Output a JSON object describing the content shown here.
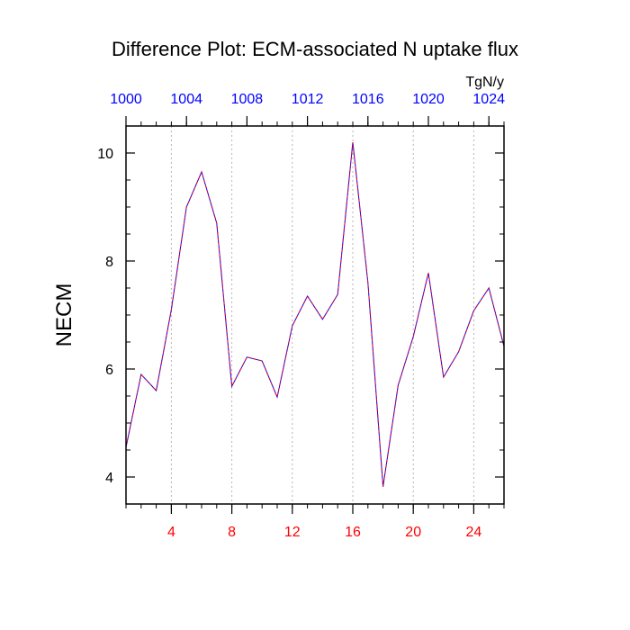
{
  "chart_data": {
    "type": "line",
    "title": "Difference Plot: ECM-associated N uptake flux",
    "units": "TgN/y",
    "ylabel": "NECM",
    "xlim": [
      1,
      26
    ],
    "ylim": [
      3.5,
      10.5
    ],
    "yticks_major": [
      4,
      6,
      8,
      10
    ],
    "yticks_minor": [
      3.5,
      4.5,
      5,
      5.5,
      6.5,
      7,
      7.5,
      8.5,
      9,
      9.5,
      10.5
    ],
    "xticks_bottom": {
      "major": [
        4,
        8,
        12,
        16,
        20,
        24
      ],
      "labels": [
        "4",
        "8",
        "12",
        "16",
        "20",
        "24"
      ],
      "color": "#ff0000"
    },
    "xticks_top": {
      "major": [
        1,
        5,
        9,
        13,
        17,
        21,
        25
      ],
      "labels": [
        "1000",
        "1004",
        "1008",
        "1012",
        "1016",
        "1020",
        "1024"
      ],
      "color": "#0000ff"
    },
    "grid": "vertical-dashed-at-major",
    "series": [
      {
        "color_primary": "#0000ff",
        "color_secondary": "#ff0000",
        "x": [
          1,
          2,
          3,
          4,
          5,
          6,
          7,
          8,
          9,
          10,
          11,
          12,
          13,
          14,
          15,
          16,
          17,
          18,
          19,
          20,
          21,
          22,
          23,
          24,
          25,
          26
        ],
        "y": [
          4.55,
          5.9,
          5.6,
          7.1,
          9.0,
          9.65,
          8.7,
          5.68,
          6.22,
          6.15,
          5.48,
          6.8,
          7.35,
          6.92,
          7.38,
          10.2,
          7.6,
          3.82,
          5.7,
          6.6,
          7.78,
          5.85,
          6.32,
          7.08,
          7.5,
          6.42
        ]
      }
    ]
  }
}
